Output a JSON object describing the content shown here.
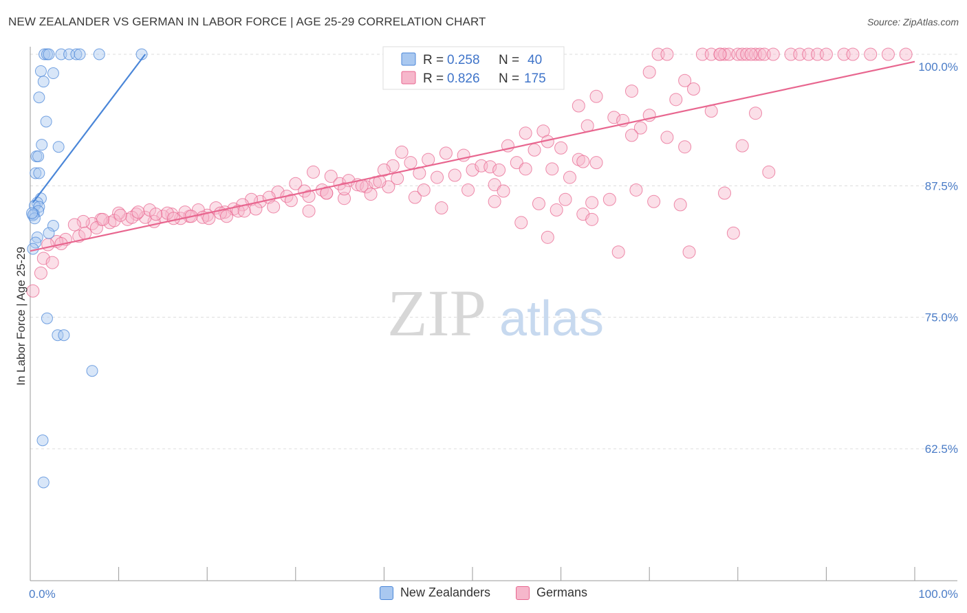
{
  "header": {
    "title": "NEW ZEALANDER VS GERMAN IN LABOR FORCE | AGE 25-29 CORRELATION CHART",
    "source": "Source: ZipAtlas.com"
  },
  "watermark": {
    "zip": "ZIP",
    "atlas": "atlas"
  },
  "legend_stats": [
    {
      "r_label": "R = ",
      "r_value": "0.258",
      "n_label": "N = ",
      "n_value": "40",
      "color": "#4a86d8"
    },
    {
      "r_label": "R = ",
      "r_value": "0.826",
      "n_label": "N = ",
      "n_value": "175",
      "color": "#e8668f"
    }
  ],
  "chart_data": {
    "type": "scatter",
    "title": "NEW ZEALANDER VS GERMAN IN LABOR FORCE | AGE 25-29 CORRELATION CHART",
    "xlabel": "",
    "ylabel": "In Labor Force | Age 25-29",
    "xlim": [
      0,
      100
    ],
    "ylim": [
      50,
      101
    ],
    "x_tick_labels": [
      "0.0%",
      "100.0%"
    ],
    "y_ticks": [
      62.5,
      75.0,
      87.5,
      100.0
    ],
    "y_tick_labels": [
      "62.5%",
      "75.0%",
      "87.5%",
      "100.0%"
    ],
    "grid": true,
    "series": [
      {
        "name": "New Zealanders",
        "color": "#4a86d8",
        "fill": "#a9c8f0",
        "trend": {
          "x": [
            0.3,
            13
          ],
          "y": [
            85.9,
            100.0
          ]
        },
        "points": [
          [
            1.6,
            100
          ],
          [
            1.9,
            100
          ],
          [
            2.1,
            100
          ],
          [
            3.5,
            100
          ],
          [
            4.4,
            100
          ],
          [
            5.2,
            100
          ],
          [
            5.6,
            100
          ],
          [
            7.8,
            100
          ],
          [
            12.6,
            100
          ],
          [
            1.2,
            98.4
          ],
          [
            2.6,
            98.2
          ],
          [
            1.5,
            97.4
          ],
          [
            1.0,
            95.9
          ],
          [
            1.8,
            93.6
          ],
          [
            1.3,
            91.4
          ],
          [
            3.2,
            91.2
          ],
          [
            0.7,
            90.3
          ],
          [
            0.9,
            90.3
          ],
          [
            0.6,
            88.7
          ],
          [
            1.0,
            88.7
          ],
          [
            1.2,
            86.3
          ],
          [
            0.8,
            85.9
          ],
          [
            0.5,
            85.6
          ],
          [
            1.0,
            85.5
          ],
          [
            0.9,
            85.1
          ],
          [
            0.4,
            84.8
          ],
          [
            0.3,
            84.7
          ],
          [
            0.5,
            84.4
          ],
          [
            0.2,
            84.9
          ],
          [
            2.6,
            83.7
          ],
          [
            2.1,
            83.0
          ],
          [
            0.8,
            82.6
          ],
          [
            0.6,
            82.1
          ],
          [
            0.3,
            81.5
          ],
          [
            1.9,
            74.9
          ],
          [
            3.1,
            73.3
          ],
          [
            3.8,
            73.3
          ],
          [
            7.0,
            69.9
          ],
          [
            1.4,
            63.3
          ],
          [
            1.5,
            59.3
          ]
        ]
      },
      {
        "name": "Germans",
        "color": "#e8668f",
        "fill": "#f6b7cb",
        "trend": {
          "x": [
            0,
            100
          ],
          "y": [
            81.3,
            99.3
          ]
        },
        "points": [
          [
            71,
            100
          ],
          [
            72,
            100
          ],
          [
            76,
            100
          ],
          [
            77,
            100
          ],
          [
            78,
            100
          ],
          [
            78.5,
            100
          ],
          [
            79,
            100
          ],
          [
            80,
            100
          ],
          [
            80.5,
            100
          ],
          [
            81,
            100
          ],
          [
            82,
            100
          ],
          [
            82.5,
            100
          ],
          [
            83,
            100
          ],
          [
            84,
            100
          ],
          [
            86,
            100
          ],
          [
            87,
            100
          ],
          [
            88,
            100
          ],
          [
            89,
            100
          ],
          [
            90,
            100
          ],
          [
            92,
            100
          ],
          [
            93,
            100
          ],
          [
            95,
            100
          ],
          [
            97,
            100
          ],
          [
            99,
            100
          ],
          [
            78,
            100
          ],
          [
            81.5,
            100
          ],
          [
            70,
            98.3
          ],
          [
            74,
            97.5
          ],
          [
            75,
            96.7
          ],
          [
            68,
            96.5
          ],
          [
            64,
            96.0
          ],
          [
            62,
            95.1
          ],
          [
            70,
            94.2
          ],
          [
            73,
            95.7
          ],
          [
            77,
            94.6
          ],
          [
            82,
            94.4
          ],
          [
            69,
            93.0
          ],
          [
            63,
            93.2
          ],
          [
            66,
            94.0
          ],
          [
            67,
            93.7
          ],
          [
            72,
            92.1
          ],
          [
            74,
            91.2
          ],
          [
            68,
            92.3
          ],
          [
            54,
            91.3
          ],
          [
            56,
            92.5
          ],
          [
            58,
            92.7
          ],
          [
            58.5,
            91.7
          ],
          [
            60,
            91.1
          ],
          [
            57,
            90.9
          ],
          [
            49,
            90.4
          ],
          [
            47,
            90.6
          ],
          [
            45,
            90.0
          ],
          [
            42,
            90.7
          ],
          [
            41,
            89.4
          ],
          [
            43,
            89.7
          ],
          [
            40,
            89.0
          ],
          [
            44,
            88.7
          ],
          [
            46,
            88.3
          ],
          [
            48,
            88.5
          ],
          [
            50,
            89.0
          ],
          [
            51,
            89.4
          ],
          [
            52,
            89.3
          ],
          [
            53,
            89.0
          ],
          [
            55,
            89.7
          ],
          [
            56,
            89.1
          ],
          [
            59,
            89.1
          ],
          [
            61,
            88.3
          ],
          [
            62,
            90.0
          ],
          [
            62.5,
            89.8
          ],
          [
            64,
            89.7
          ],
          [
            32,
            88.8
          ],
          [
            34,
            88.4
          ],
          [
            35,
            87.7
          ],
          [
            36,
            88.0
          ],
          [
            37,
            87.6
          ],
          [
            38,
            87.4
          ],
          [
            39,
            87.8
          ],
          [
            30,
            87.7
          ],
          [
            31,
            87.0
          ],
          [
            33,
            87.1
          ],
          [
            28,
            86.9
          ],
          [
            29,
            86.5
          ],
          [
            26,
            86.0
          ],
          [
            27,
            86.4
          ],
          [
            25,
            86.2
          ],
          [
            23,
            85.3
          ],
          [
            24,
            85.7
          ],
          [
            21,
            85.4
          ],
          [
            22,
            85.0
          ],
          [
            20,
            84.7
          ],
          [
            19,
            85.2
          ],
          [
            18,
            84.6
          ],
          [
            17,
            84.4
          ],
          [
            16,
            84.8
          ],
          [
            15,
            84.6
          ],
          [
            14,
            84.1
          ],
          [
            13,
            84.5
          ],
          [
            12,
            84.8
          ],
          [
            11,
            84.3
          ],
          [
            10,
            84.9
          ],
          [
            9,
            84.0
          ],
          [
            8,
            84.3
          ],
          [
            7,
            83.9
          ],
          [
            6,
            84.1
          ],
          [
            5,
            83.8
          ],
          [
            4,
            82.4
          ],
          [
            3,
            82.2
          ],
          [
            2,
            81.9
          ],
          [
            1.5,
            80.6
          ],
          [
            2.5,
            80.2
          ],
          [
            1.2,
            79.2
          ],
          [
            0.3,
            77.5
          ],
          [
            31.5,
            85.1
          ],
          [
            33.5,
            86.8
          ],
          [
            35.5,
            86.3
          ],
          [
            38.5,
            86.7
          ],
          [
            40.5,
            87.4
          ],
          [
            43.5,
            86.4
          ],
          [
            44.5,
            87.1
          ],
          [
            46.5,
            85.4
          ],
          [
            49.5,
            87.1
          ],
          [
            52.5,
            87.6
          ],
          [
            53.5,
            87.0
          ],
          [
            55.5,
            84.0
          ],
          [
            57.5,
            85.8
          ],
          [
            59.5,
            85.2
          ],
          [
            60.5,
            86.2
          ],
          [
            62.5,
            84.8
          ],
          [
            63.5,
            85.9
          ],
          [
            65.5,
            86.2
          ],
          [
            66.5,
            81.2
          ],
          [
            63.5,
            84.3
          ],
          [
            68.5,
            87.1
          ],
          [
            73.5,
            85.7
          ],
          [
            74.5,
            81.2
          ],
          [
            79.5,
            83.0
          ],
          [
            83.5,
            88.8
          ],
          [
            78.5,
            86.8
          ],
          [
            80.5,
            91.3
          ],
          [
            58.5,
            82.6
          ],
          [
            52.5,
            86.0
          ],
          [
            70.5,
            86.0
          ],
          [
            3.5,
            82.0
          ],
          [
            5.5,
            82.7
          ],
          [
            7.5,
            83.5
          ],
          [
            9.5,
            84.2
          ],
          [
            11.5,
            84.5
          ],
          [
            13.5,
            85.2
          ],
          [
            15.5,
            84.9
          ],
          [
            17.5,
            85.0
          ],
          [
            19.5,
            84.5
          ],
          [
            21.5,
            84.9
          ],
          [
            23.5,
            85.1
          ],
          [
            25.5,
            85.3
          ],
          [
            27.5,
            85.5
          ],
          [
            29.5,
            86.1
          ],
          [
            31.5,
            86.5
          ],
          [
            33.5,
            86.8
          ],
          [
            35.5,
            87.2
          ],
          [
            37.5,
            87.5
          ],
          [
            39.5,
            87.9
          ],
          [
            41.5,
            88.2
          ],
          [
            6.2,
            83.0
          ],
          [
            8.2,
            84.3
          ],
          [
            10.2,
            84.7
          ],
          [
            12.2,
            85.0
          ],
          [
            14.2,
            84.8
          ],
          [
            16.2,
            84.4
          ],
          [
            18.2,
            84.6
          ],
          [
            20.2,
            84.4
          ],
          [
            22.2,
            84.6
          ],
          [
            24.2,
            85.1
          ]
        ]
      }
    ]
  }
}
